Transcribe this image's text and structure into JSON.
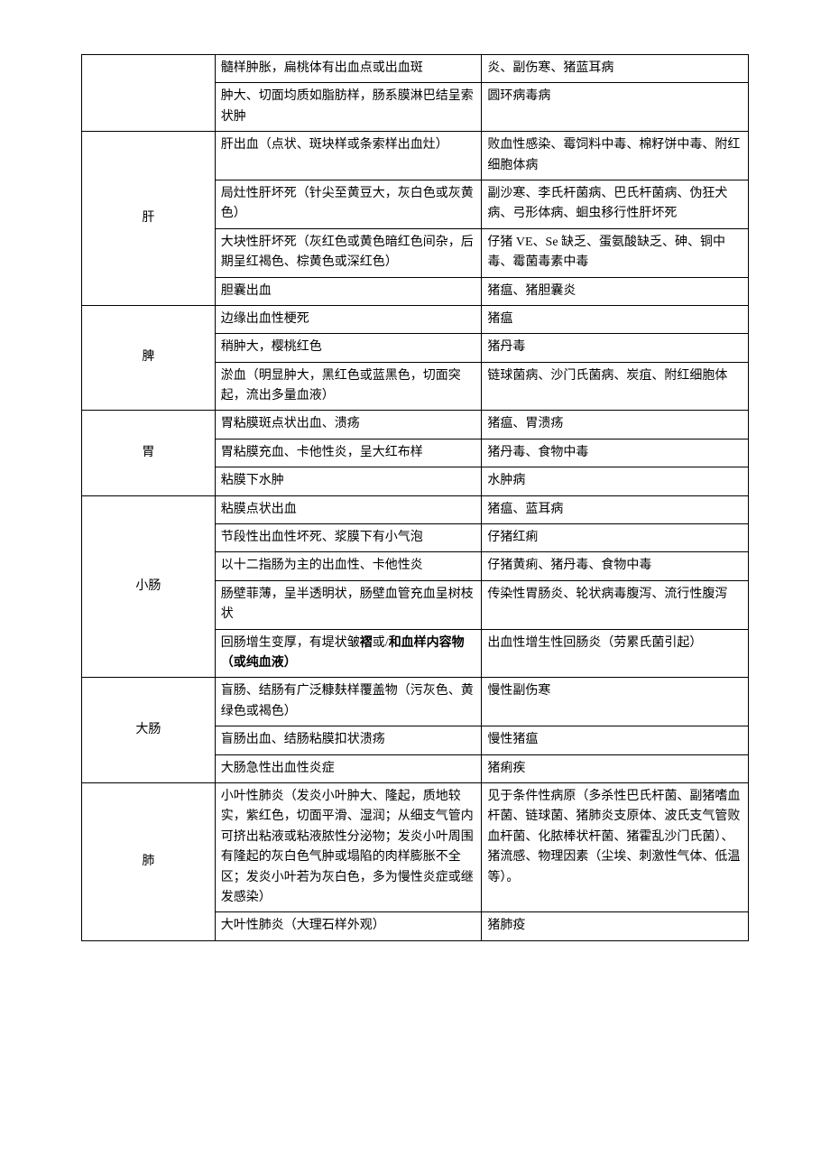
{
  "rows": [
    {
      "organ": "",
      "organ_rowspan": 2,
      "finding": "髓样肿胀，扁桃体有出血点或出血斑",
      "disease": "炎、副伤寒、猪蓝耳病"
    },
    {
      "finding": "肿大、切面均质如脂肪样，肠系膜淋巴结呈索状肿",
      "disease": "圆环病毒病"
    },
    {
      "organ": "肝",
      "organ_rowspan": 4,
      "finding": "肝出血（点状、斑块样或条索样出血灶）",
      "disease": "败血性感染、霉饲料中毒、棉籽饼中毒、附红细胞体病"
    },
    {
      "finding": "局灶性肝坏死（针尖至黄豆大，灰白色或灰黄色）",
      "disease": "副沙寒、李氏杆菌病、巴氏杆菌病、伪狂犬病、弓形体病、蛔虫移行性肝坏死"
    },
    {
      "finding": "大块性肝坏死（灰红色或黄色暗红色间杂，后期呈红褐色、棕黄色或深红色）",
      "disease": "仔猪 VE、Se 缺乏、蛋氨酸缺乏、砷、铜中毒、霉菌毒素中毒"
    },
    {
      "finding": "胆囊出血",
      "disease": "猪瘟、猪胆囊炎"
    },
    {
      "organ": "脾",
      "organ_rowspan": 3,
      "finding": "边缘出血性梗死",
      "disease": "猪瘟"
    },
    {
      "finding": "稍肿大，樱桃红色",
      "disease": "猪丹毒"
    },
    {
      "finding": "淤血（明显肿大，黑红色或蓝黑色，切面突起，流出多量血液）",
      "disease": "链球菌病、沙门氏菌病、炭疽、附红细胞体"
    },
    {
      "organ": "胃",
      "organ_rowspan": 3,
      "finding": "胃粘膜斑点状出血、溃疡",
      "disease": "猪瘟、胃溃疡"
    },
    {
      "finding": "胃粘膜充血、卡他性炎，呈大红布样",
      "disease": "猪丹毒、食物中毒"
    },
    {
      "finding": "粘膜下水肿",
      "disease": "水肿病"
    },
    {
      "organ": "小肠",
      "organ_rowspan": 5,
      "finding": "粘膜点状出血",
      "disease": "猪瘟、蓝耳病"
    },
    {
      "finding": "节段性出血性坏死、浆膜下有小气泡",
      "disease": "仔猪红痢"
    },
    {
      "finding": "以十二指肠为主的出血性、卡他性炎",
      "disease": "仔猪黄痢、猪丹毒、食物中毒"
    },
    {
      "finding": "肠壁菲薄，呈半透明状，肠壁血管充血呈树枝状",
      "disease": "传染性胃肠炎、轮状病毒腹泻、流行性腹泻"
    },
    {
      "finding_html": true,
      "finding": "回肠增生变厚，有堤状皱<b>褶</b>或/<b>和血样内容物（或纯血液）</b>",
      "disease": "出血性增生性回肠炎（劳累氏菌引起）"
    },
    {
      "organ": "大肠",
      "organ_rowspan": 3,
      "finding": "盲肠、结肠有广泛糠麸样覆盖物（污灰色、黄绿色或褐色）",
      "disease": "慢性副伤寒"
    },
    {
      "finding": "盲肠出血、结肠粘膜扣状溃疡",
      "disease": "慢性猪瘟"
    },
    {
      "finding": "大肠急性出血性炎症",
      "disease": "猪痢疾"
    },
    {
      "organ": "肺",
      "organ_rowspan": 2,
      "finding": "小叶性肺炎（发炎小叶肿大、隆起，质地较实，紫红色，切面平滑、湿润；从细支气管内可挤出粘液或粘液脓性分泌物；发炎小叶周围有隆起的灰白色气肿或塌陷的肉样膨胀不全区；发炎小叶若为灰白色，多为慢性炎症或继发感染）",
      "disease": "见于条件性病原（多杀性巴氏杆菌、副猪嗜血杆菌、链球菌、猪肺炎支原体、波氏支气管败血杆菌、化脓棒状杆菌、猪霍乱沙门氏菌）、猪流感、物理因素（尘埃、刺激性气体、低温等）。"
    },
    {
      "finding": "大叶性肺炎（大理石样外观）",
      "disease": "猪肺疫"
    }
  ]
}
